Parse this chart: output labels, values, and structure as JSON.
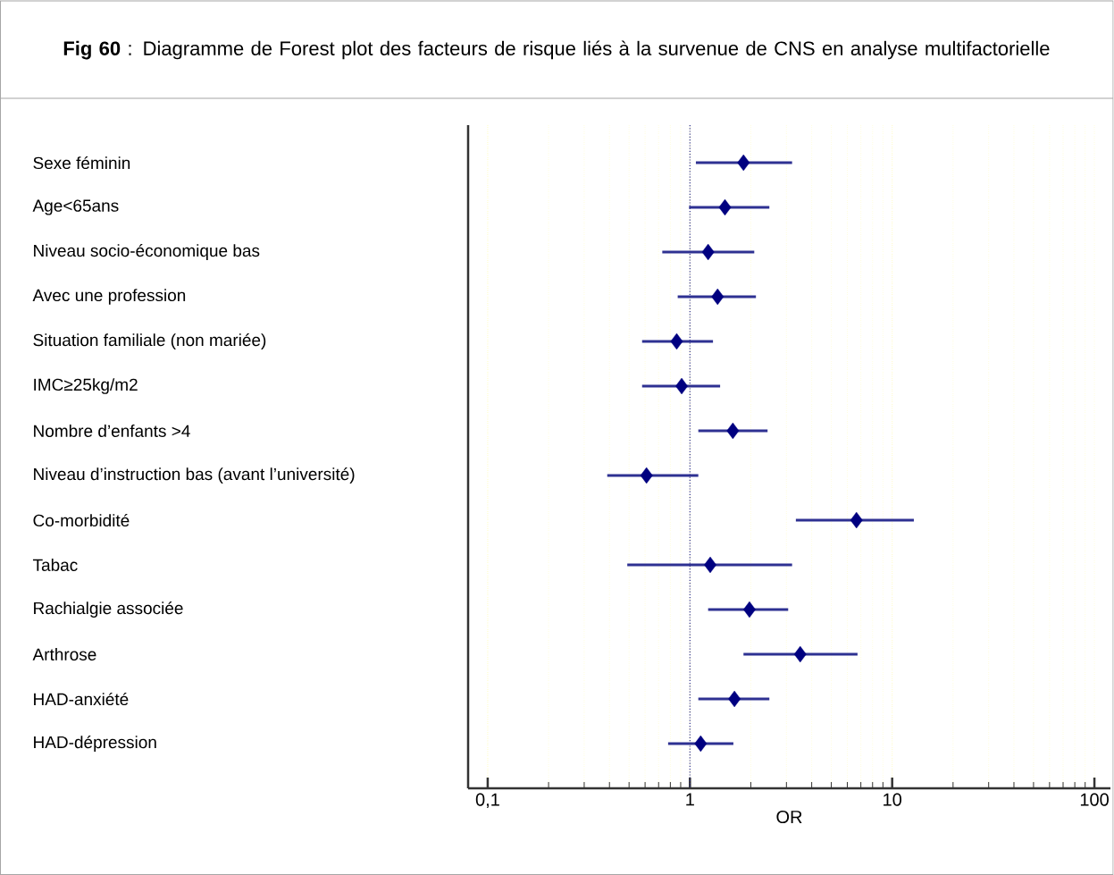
{
  "chart_data": {
    "type": "scatter",
    "orientation": "horizontal",
    "title": "**Fig 60** : Diagramme de Forest plot des facteurs de risque liés à la survenue de CNS en analyse multifactorielle",
    "xlabel": "OR",
    "categories": [
      "Sexe féminin",
      "Age<65ans",
      "Niveau socio-économique bas",
      "Avec une profession",
      "Situation familiale (non mariée)",
      "IMC≥25kg/m2",
      "Nombre d’enfants   >4",
      "Niveau d’instruction bas (avant l’université)",
      "Co-morbidité",
      "Tabac",
      "Rachialgie associée",
      "Arthrose",
      "HAD-anxiété",
      "HAD-dépression"
    ],
    "values": [
      1.84,
      1.49,
      1.23,
      1.37,
      0.86,
      0.91,
      1.63,
      0.61,
      6.66,
      1.26,
      1.97,
      3.51,
      1.66,
      1.13
    ],
    "errors": [
      [
        1.07,
        3.2
      ],
      [
        0.99,
        2.47
      ],
      [
        0.73,
        2.08
      ],
      [
        0.87,
        2.12
      ],
      [
        0.58,
        1.3
      ],
      [
        0.58,
        1.41
      ],
      [
        1.1,
        2.42
      ],
      [
        0.39,
        1.1
      ],
      [
        3.34,
        12.8
      ],
      [
        0.49,
        3.2
      ],
      [
        1.23,
        3.06
      ],
      [
        1.84,
        6.74
      ],
      [
        1.1,
        2.47
      ],
      [
        0.78,
        1.64
      ]
    ],
    "color": "#000080",
    "marker": "diamond",
    "log": "x",
    "xlim": [
      0.08,
      120
    ],
    "xticks": [
      {
        "value": 0.1,
        "label": "0,1"
      },
      1,
      10,
      100
    ],
    "grid": "x",
    "ref_lines": [
      {
        "axis": "x",
        "value": 1,
        "color": "#2e3192",
        "line_style": "dotted"
      }
    ]
  }
}
